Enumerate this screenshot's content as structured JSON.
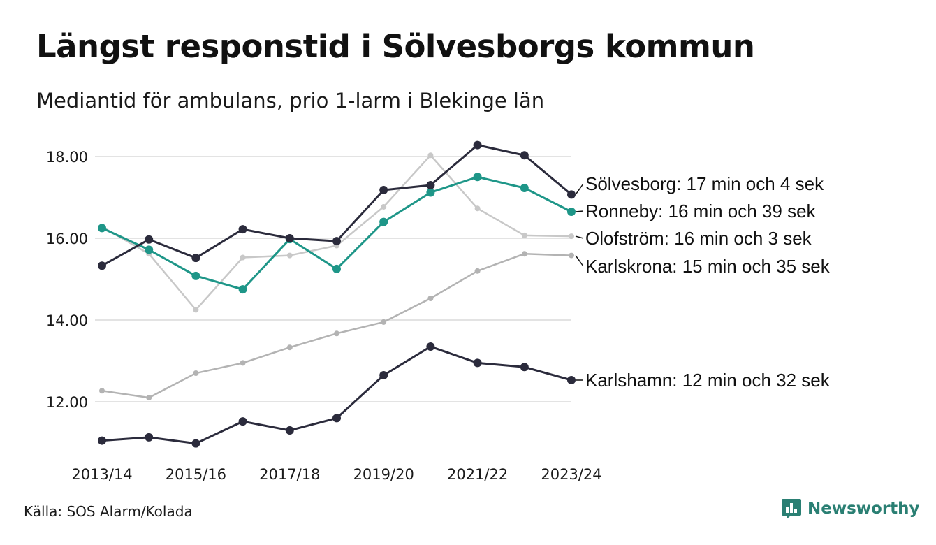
{
  "header": {
    "title": "Längst responstid i Sölvesborgs kommun",
    "subtitle": "Mediantid för ambulans, prio 1-larm i Blekinge län"
  },
  "footer": {
    "source": "Källa: SOS Alarm/Kolada",
    "brand": "Newsworthy",
    "brand_icon": "bar-chart-speech-bubble-icon",
    "brand_color": "#2a7f73"
  },
  "chart_data": {
    "type": "line",
    "x": [
      "2013/14",
      "2014/15",
      "2015/16",
      "2016/17",
      "2017/18",
      "2018/19",
      "2019/20",
      "2020/21",
      "2021/22",
      "2022/23",
      "2023/24"
    ],
    "x_tick_labels": [
      "2013/14",
      "2015/16",
      "2017/18",
      "2019/20",
      "2021/22",
      "2023/24"
    ],
    "y_tick_labels": [
      "18.00",
      "16.00",
      "14.00",
      "12.00"
    ],
    "y_ticks": [
      18,
      16,
      14,
      12
    ],
    "ylim": [
      10.8,
      18.6
    ],
    "grid": true,
    "legend": "direct labels at line ends (right)",
    "series": [
      {
        "name": "Olofström",
        "label": "Olofström: 16 min och 3 sek",
        "color": "#c8c8c8",
        "values": [
          16.28,
          15.62,
          14.25,
          15.53,
          15.58,
          15.82,
          16.77,
          18.03,
          16.73,
          16.07,
          16.05
        ]
      },
      {
        "name": "Karlskrona",
        "label": "Karlskrona: 15 min och 35 sek",
        "color": "#b3b3b3",
        "values": [
          12.27,
          12.1,
          12.7,
          12.95,
          13.33,
          13.67,
          13.95,
          14.53,
          15.2,
          15.62,
          15.58
        ]
      },
      {
        "name": "Karlshamn",
        "label": "Karlshamn: 12 min och 32 sek",
        "color": "#2b2b3c",
        "values": [
          11.05,
          11.13,
          10.98,
          11.52,
          11.3,
          11.6,
          12.65,
          13.35,
          12.95,
          12.85,
          12.53
        ]
      },
      {
        "name": "Ronneby",
        "label": "Ronneby: 16 min och 39 sek",
        "color": "#1e9688",
        "values": [
          16.25,
          15.72,
          15.08,
          14.75,
          15.98,
          15.25,
          16.4,
          17.12,
          17.5,
          17.23,
          16.65
        ]
      },
      {
        "name": "Sölvesborg",
        "label": "Sölvesborg: 17 min och 4 sek",
        "color": "#2b2b3c",
        "values": [
          15.33,
          15.97,
          15.52,
          16.22,
          16.0,
          15.93,
          17.18,
          17.3,
          18.28,
          18.03,
          17.07
        ]
      }
    ]
  }
}
